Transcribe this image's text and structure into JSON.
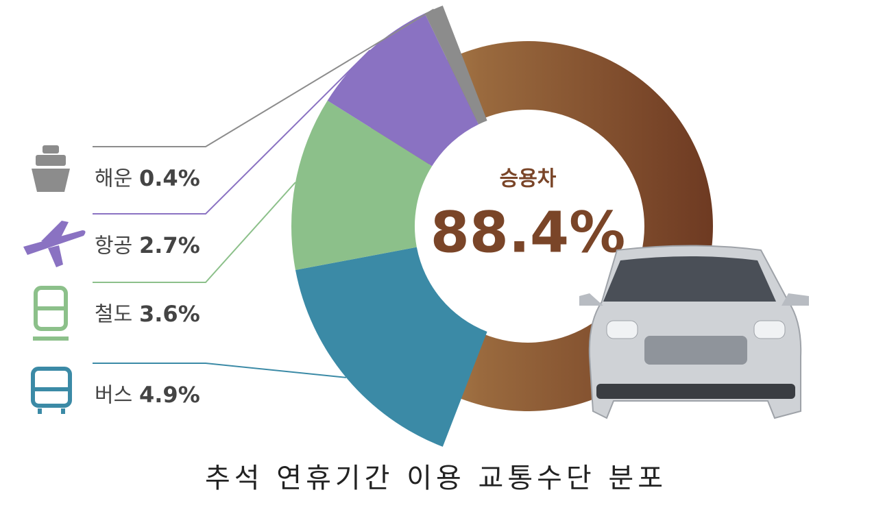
{
  "chart_data": {
    "type": "donut",
    "title": "추석 연휴기간 이용 교통수단 분포",
    "categories": [
      "승용차",
      "버스",
      "철도",
      "항공",
      "해운"
    ],
    "values": [
      88.4,
      4.9,
      3.6,
      2.7,
      0.4
    ],
    "value_labels": [
      "88.4%",
      "4.9%",
      "3.6%",
      "2.7%",
      "0.4%"
    ],
    "colors": [
      "#7a4528",
      "#3b8aa6",
      "#8cc08a",
      "#8a72c2",
      "#8c8c8c"
    ]
  }
}
